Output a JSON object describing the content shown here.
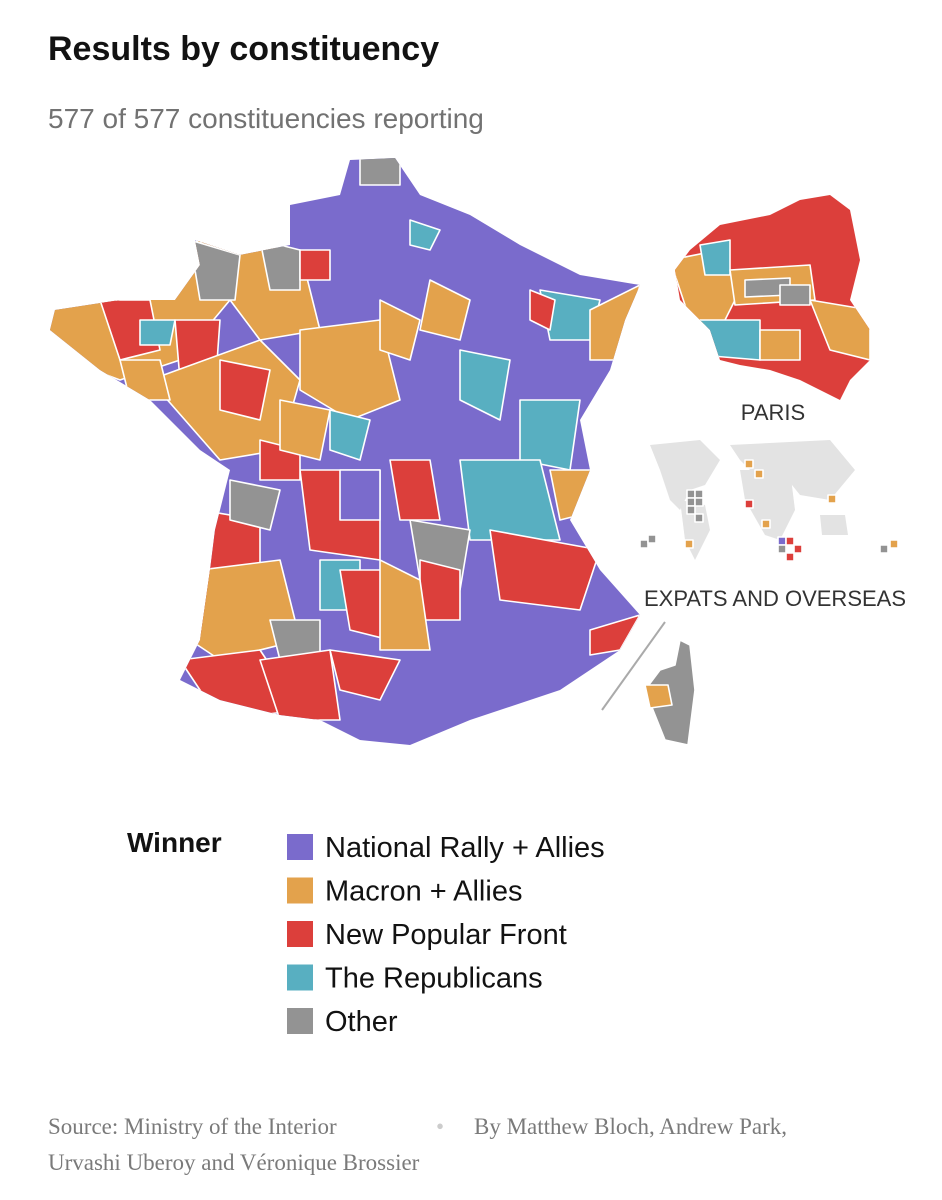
{
  "title": "Results by constituency",
  "subtitle": "577 of 577 constituencies reporting",
  "map": {
    "insets": [
      "PARIS",
      "EXPATS AND OVERSEAS"
    ]
  },
  "legend": {
    "title": "Winner",
    "items": [
      {
        "name": "National Rally + Allies",
        "color": "#7a6bcc"
      },
      {
        "name": "Macron + Allies",
        "color": "#e3a24c"
      },
      {
        "name": "New Popular Front",
        "color": "#dc3f3b"
      },
      {
        "name": "The Republicans",
        "color": "#58afc1"
      },
      {
        "name": "Other",
        "color": "#939393"
      }
    ]
  },
  "footer": {
    "source": "Source: Ministry of the Interior",
    "separator": "•",
    "byline": [
      "By Matthew Bloch, Andrew Park,",
      "Urvashi Uberoy and Véronique Brossier"
    ]
  }
}
